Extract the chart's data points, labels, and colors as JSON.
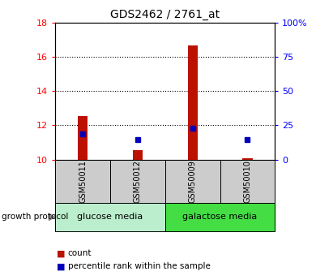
{
  "title": "GDS2462 / 2761_at",
  "samples": [
    "GSM50011",
    "GSM50012",
    "GSM50009",
    "GSM50010"
  ],
  "count_values": [
    12.55,
    10.55,
    16.65,
    10.1
  ],
  "percentile_values": [
    11.5,
    11.15,
    11.85,
    11.15
  ],
  "count_base": 10.0,
  "ylim_left": [
    10,
    18
  ],
  "ylim_right": [
    0,
    100
  ],
  "yticks_left": [
    10,
    12,
    14,
    16,
    18
  ],
  "yticks_right": [
    0,
    25,
    50,
    75,
    100
  ],
  "yticklabels_right": [
    "0",
    "25",
    "50",
    "75",
    "100%"
  ],
  "bar_color": "#bb1100",
  "dot_color": "#0000bb",
  "groups": [
    {
      "label": "glucose media",
      "indices": [
        0,
        1
      ],
      "color": "#bbeecc"
    },
    {
      "label": "galactose media",
      "indices": [
        2,
        3
      ],
      "color": "#44dd44"
    }
  ],
  "group_label": "growth protocol",
  "legend_count": "count",
  "legend_percentile": "percentile rank within the sample",
  "bar_width": 0.18,
  "sample_box_color": "#cccccc",
  "background_color": "#ffffff"
}
